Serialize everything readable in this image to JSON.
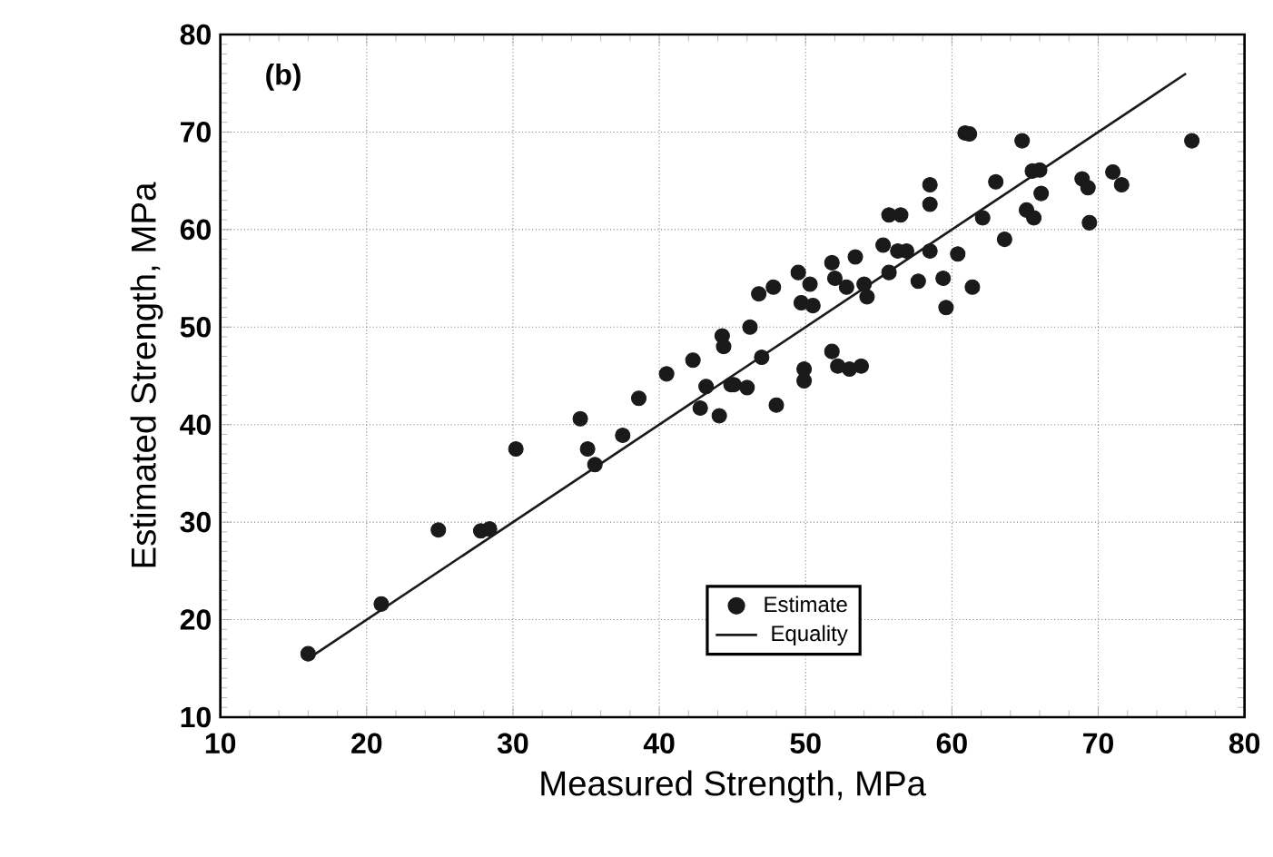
{
  "chart_data": {
    "type": "scatter",
    "xlabel": "Measured Strength, MPa",
    "ylabel": "Estimated Strength, MPa",
    "annotations": [
      "(b)"
    ],
    "xlim": [
      10,
      80
    ],
    "ylim": [
      10,
      80
    ],
    "xticks": [
      10,
      20,
      30,
      40,
      50,
      60,
      70,
      80
    ],
    "yticks": [
      10,
      20,
      30,
      40,
      50,
      60,
      70,
      80
    ],
    "grid": true,
    "legend": "bottom",
    "marker": "circle",
    "series": [
      {
        "name": "Estimate",
        "color": "#1a1a1a",
        "x": [
          16.0,
          21.0,
          24.9,
          27.8,
          28.4,
          30.2,
          34.6,
          35.1,
          35.6,
          37.5,
          38.6,
          40.5,
          42.3,
          42.8,
          43.2,
          44.1,
          44.3,
          44.4,
          44.9,
          45.1,
          46.0,
          46.2,
          47.0,
          46.8,
          47.8,
          48.0,
          49.5,
          49.7,
          49.9,
          49.9,
          50.3,
          50.5,
          51.8,
          51.8,
          52.0,
          52.2,
          52.8,
          53.0,
          53.4,
          53.8,
          54.0,
          54.2,
          55.3,
          55.7,
          55.7,
          56.5,
          56.3,
          56.9,
          57.7,
          58.5,
          58.5,
          58.5,
          59.4,
          59.6,
          60.4,
          60.9,
          61.2,
          61.4,
          62.1,
          63.0,
          63.6,
          64.8,
          65.1,
          65.6,
          65.5,
          66.0,
          66.1,
          68.9,
          69.3,
          69.4,
          71.0,
          71.6,
          76.4
        ],
        "values": [
          16.5,
          21.6,
          29.2,
          29.1,
          29.3,
          37.5,
          40.6,
          37.5,
          35.9,
          38.9,
          42.7,
          45.2,
          46.6,
          41.7,
          43.9,
          40.9,
          49.1,
          48.0,
          44.1,
          44.1,
          43.8,
          50.0,
          46.9,
          53.4,
          54.1,
          42.0,
          55.6,
          52.5,
          45.7,
          44.5,
          54.4,
          52.2,
          56.6,
          47.5,
          55.0,
          46.0,
          54.1,
          45.7,
          57.2,
          46.0,
          54.4,
          53.1,
          58.4,
          55.6,
          61.5,
          61.5,
          57.8,
          57.8,
          54.7,
          64.6,
          62.6,
          57.8,
          55.0,
          52.0,
          57.5,
          69.9,
          69.8,
          54.1,
          61.2,
          64.9,
          59.0,
          69.1,
          62.0,
          61.2,
          66.0,
          66.1,
          63.7,
          65.2,
          64.3,
          60.7,
          65.9,
          64.6,
          69.1
        ]
      },
      {
        "name": "Equality",
        "type": "line",
        "line_style": "solid",
        "marker": "none",
        "color": "#1a1a1a",
        "x": [
          16,
          76
        ],
        "values": [
          16,
          76
        ]
      }
    ]
  }
}
